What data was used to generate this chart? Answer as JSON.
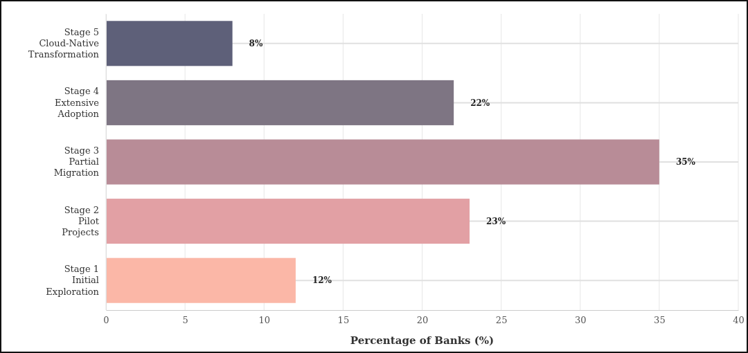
{
  "chart_data": {
    "type": "bar",
    "orientation": "horizontal",
    "categories": [
      "Stage 5\nCloud-Native\nTransformation",
      "Stage 4\nExtensive\nAdoption",
      "Stage 3\nPartial\nMigration",
      "Stage 2\nPilot\nProjects",
      "Stage 1\nInitial\nExploration"
    ],
    "values": [
      8,
      22,
      35,
      23,
      12
    ],
    "colors": [
      "#5e6079",
      "#7e7583",
      "#b88c97",
      "#e2a0a4",
      "#fbb7a7"
    ],
    "value_labels": [
      "8%",
      "22%",
      "35%",
      "23%",
      "12%"
    ],
    "xlabel": "Percentage of Banks (%)",
    "xlim": [
      0,
      40
    ],
    "xticks": [
      0,
      5,
      10,
      15,
      20,
      25,
      30,
      35,
      40
    ],
    "grid": true
  }
}
